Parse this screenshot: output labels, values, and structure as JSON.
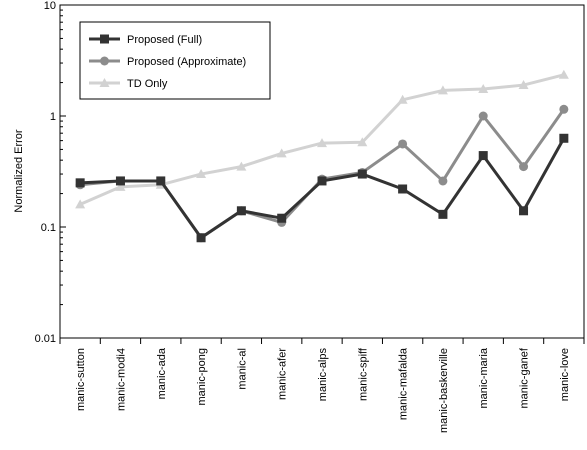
{
  "chart_data": {
    "type": "line",
    "title": "",
    "xlabel": "",
    "ylabel": "Normalized Error",
    "yscale": "log",
    "ylim": [
      0.01,
      10
    ],
    "ytick_labels": [
      "10",
      "1",
      "0.1",
      "0.01"
    ],
    "ytick_values": [
      10,
      1,
      0.1,
      0.01
    ],
    "grid": false,
    "legend_position": "top-left",
    "categories": [
      "manic-sutton",
      "manic-modi4",
      "manic-ada",
      "manic-pong",
      "manic-al",
      "manic-afer",
      "manic-alps",
      "manic-spiff",
      "manic-mafalda",
      "manic-baskerville",
      "manic-maria",
      "manic-ganef",
      "manic-love"
    ],
    "series": [
      {
        "name": "Proposed (Full)",
        "color": "#333333",
        "marker": "square",
        "values": [
          0.25,
          0.26,
          0.26,
          0.08,
          0.14,
          0.12,
          0.26,
          0.3,
          0.22,
          0.13,
          0.44,
          0.14,
          0.63
        ]
      },
      {
        "name": "Proposed (Approximate)",
        "color": "#8c8c8c",
        "marker": "circle",
        "values": [
          0.24,
          0.26,
          0.26,
          0.08,
          0.14,
          0.11,
          0.27,
          0.31,
          0.56,
          0.26,
          1.0,
          0.35,
          1.15
        ]
      },
      {
        "name": "TD Only",
        "color": "#d2d2d2",
        "marker": "triangle",
        "values": [
          0.16,
          0.23,
          0.24,
          0.3,
          0.35,
          0.46,
          0.57,
          0.58,
          1.4,
          1.7,
          1.75,
          1.9,
          2.35
        ]
      }
    ]
  }
}
